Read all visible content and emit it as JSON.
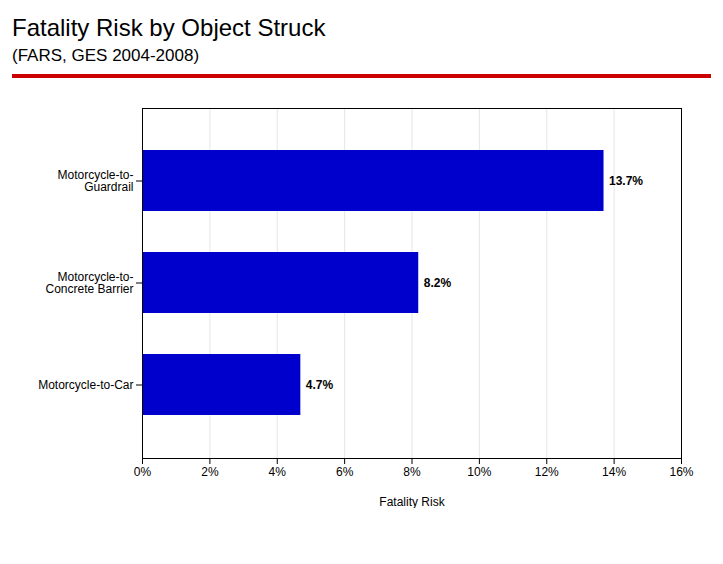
{
  "chart_data": {
    "type": "bar",
    "orientation": "horizontal",
    "title": "Fatality Risk by Object Struck",
    "subtitle": "(FARS, GES 2004-2008)",
    "categories": [
      "Motorcycle-to-\nGuardrail",
      "Motorcycle-to-\nConcrete Barrier",
      "Motorcycle-to-Car"
    ],
    "values": [
      13.7,
      8.2,
      4.7
    ],
    "value_labels": [
      "13.7%",
      "8.2%",
      "4.7%"
    ],
    "data_labels": true,
    "color": "#0000CC",
    "xlabel": "Fatality Risk",
    "xlim": [
      0,
      16
    ],
    "xticks": [
      {
        "value": 0,
        "label": "0%"
      },
      {
        "value": 2,
        "label": "2%"
      },
      {
        "value": 4,
        "label": "4%"
      },
      {
        "value": 6,
        "label": "6%"
      },
      {
        "value": 8,
        "label": "8%"
      },
      {
        "value": 10,
        "label": "10%"
      },
      {
        "value": 12,
        "label": "12%"
      },
      {
        "value": 14,
        "label": "14%"
      },
      {
        "value": 16,
        "label": "16%"
      }
    ],
    "grid": true
  }
}
